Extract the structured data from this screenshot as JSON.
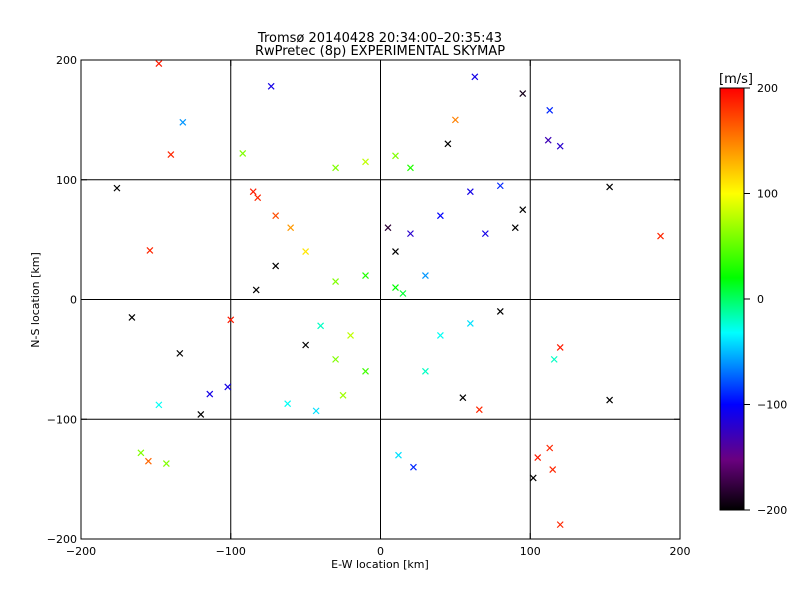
{
  "chart_data": {
    "type": "scatter",
    "title_line1": "Tromsø 20140428 20:34:00–20:35:43",
    "title_line2": "RwPretec (8p) EXPERIMENTAL SKYMAP",
    "xlabel": "E-W location [km]",
    "ylabel": "N-S location [km]",
    "xlim": [
      -200,
      200
    ],
    "ylim": [
      -200,
      200
    ],
    "xticks": [
      -200,
      -100,
      0,
      100,
      200
    ],
    "yticks": [
      -200,
      -100,
      0,
      100,
      200
    ],
    "x_tick_labels": [
      "−200",
      "−100",
      "0",
      "100",
      "200"
    ],
    "y_tick_labels": [
      "−200",
      "−100",
      "0",
      "100",
      "200"
    ],
    "grid": true,
    "grid_lines": [
      -100,
      0,
      100
    ],
    "colorbar": {
      "label": "[m/s]",
      "range": [
        -200,
        200
      ],
      "ticks": [
        200,
        100,
        0,
        -100,
        -200
      ],
      "tick_labels": [
        "200",
        "100",
        "0",
        "−100",
        "−200"
      ],
      "colormap": "rainbow (black → purple → blue → cyan → green → yellow → red)"
    },
    "points": [
      {
        "x": -148,
        "y": 197,
        "v": 190
      },
      {
        "x": -73,
        "y": 178,
        "v": -110
      },
      {
        "x": 63,
        "y": 186,
        "v": -110
      },
      {
        "x": -132,
        "y": 148,
        "v": -60
      },
      {
        "x": -140,
        "y": 121,
        "v": 185
      },
      {
        "x": -92,
        "y": 122,
        "v": 60
      },
      {
        "x": 95,
        "y": 172,
        "v": -190
      },
      {
        "x": 113,
        "y": 158,
        "v": -90
      },
      {
        "x": 112,
        "y": 133,
        "v": -130
      },
      {
        "x": 120,
        "y": 128,
        "v": -120
      },
      {
        "x": -176,
        "y": 93,
        "v": -200
      },
      {
        "x": 153,
        "y": 94,
        "v": -200
      },
      {
        "x": 187,
        "y": 53,
        "v": 185
      },
      {
        "x": -154,
        "y": 41,
        "v": 185
      },
      {
        "x": -82,
        "y": 85,
        "v": 185
      },
      {
        "x": -85,
        "y": 90,
        "v": 190
      },
      {
        "x": -70,
        "y": 28,
        "v": -200
      },
      {
        "x": -83,
        "y": 8,
        "v": -200
      },
      {
        "x": -166,
        "y": -15,
        "v": -200
      },
      {
        "x": -134,
        "y": -45,
        "v": -200
      },
      {
        "x": -100,
        "y": -17,
        "v": 190
      },
      {
        "x": -102,
        "y": -73,
        "v": -110
      },
      {
        "x": -114,
        "y": -79,
        "v": -110
      },
      {
        "x": -148,
        "y": -88,
        "v": -30
      },
      {
        "x": -120,
        "y": -96,
        "v": -200
      },
      {
        "x": -160,
        "y": -128,
        "v": 60
      },
      {
        "x": -155,
        "y": -135,
        "v": 160
      },
      {
        "x": -143,
        "y": -137,
        "v": 60
      },
      {
        "x": -43,
        "y": -93,
        "v": -40
      },
      {
        "x": -62,
        "y": -87,
        "v": -30
      },
      {
        "x": 153,
        "y": -84,
        "v": -200
      },
      {
        "x": 116,
        "y": -50,
        "v": -20
      },
      {
        "x": 120,
        "y": -40,
        "v": 190
      },
      {
        "x": 102,
        "y": -149,
        "v": -200
      },
      {
        "x": 105,
        "y": -132,
        "v": 190
      },
      {
        "x": 113,
        "y": -124,
        "v": 185
      },
      {
        "x": 115,
        "y": -142,
        "v": 185
      },
      {
        "x": 120,
        "y": -188,
        "v": 185
      },
      {
        "x": 55,
        "y": -82,
        "v": -200
      },
      {
        "x": 66,
        "y": -92,
        "v": 185
      },
      {
        "x": 22,
        "y": -140,
        "v": -90
      },
      {
        "x": 12,
        "y": -130,
        "v": -40
      },
      {
        "x": -50,
        "y": -38,
        "v": -200
      },
      {
        "x": -40,
        "y": -22,
        "v": -20
      },
      {
        "x": -30,
        "y": -50,
        "v": 60
      },
      {
        "x": -20,
        "y": -30,
        "v": 80
      },
      {
        "x": 30,
        "y": 20,
        "v": -60
      },
      {
        "x": 10,
        "y": 40,
        "v": -200
      },
      {
        "x": 5,
        "y": 60,
        "v": -180
      },
      {
        "x": 20,
        "y": 55,
        "v": -120
      },
      {
        "x": 40,
        "y": 70,
        "v": -100
      },
      {
        "x": 60,
        "y": 90,
        "v": -110
      },
      {
        "x": 80,
        "y": 95,
        "v": -90
      },
      {
        "x": 90,
        "y": 60,
        "v": -200
      },
      {
        "x": 95,
        "y": 75,
        "v": -200
      },
      {
        "x": 70,
        "y": 55,
        "v": -110
      },
      {
        "x": 10,
        "y": 10,
        "v": 20
      },
      {
        "x": 15,
        "y": 5,
        "v": 10
      },
      {
        "x": -10,
        "y": 20,
        "v": 30
      },
      {
        "x": -30,
        "y": 15,
        "v": 60
      },
      {
        "x": -50,
        "y": 40,
        "v": 110
      },
      {
        "x": -60,
        "y": 60,
        "v": 140
      },
      {
        "x": -70,
        "y": 70,
        "v": 170
      },
      {
        "x": -30,
        "y": 110,
        "v": 60
      },
      {
        "x": -10,
        "y": 115,
        "v": 80
      },
      {
        "x": 10,
        "y": 120,
        "v": 60
      },
      {
        "x": 20,
        "y": 110,
        "v": 30
      },
      {
        "x": 45,
        "y": 130,
        "v": -200
      },
      {
        "x": 50,
        "y": 150,
        "v": 150
      },
      {
        "x": 40,
        "y": -30,
        "v": -30
      },
      {
        "x": 60,
        "y": -20,
        "v": -40
      },
      {
        "x": 80,
        "y": -10,
        "v": -200
      },
      {
        "x": -10,
        "y": -60,
        "v": 40
      },
      {
        "x": -25,
        "y": -80,
        "v": 70
      },
      {
        "x": 30,
        "y": -60,
        "v": -20
      }
    ]
  }
}
